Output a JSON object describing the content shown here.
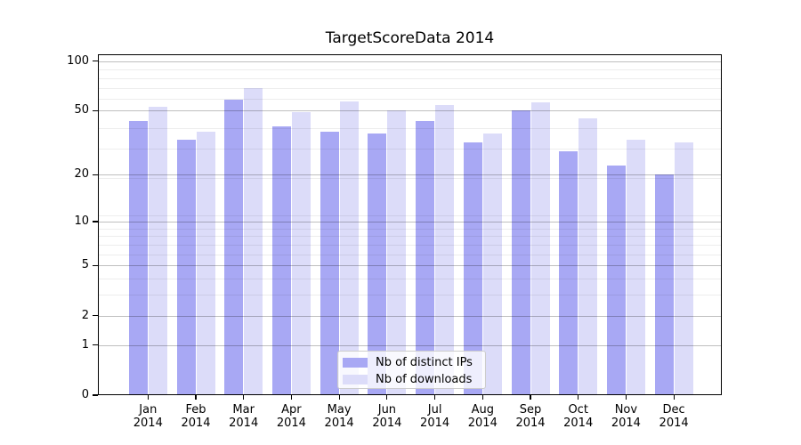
{
  "colors": {
    "ips_bar": "#a8a8f4",
    "downloads_bar": "#dcdcf9",
    "grid_major": "rgba(0,0,0,0.25)",
    "grid_minor": "rgba(0,0,0,0.07)",
    "spine": "#000000",
    "legend_bg": "rgba(255,255,255,0.8)",
    "legend_border": "#cccccc",
    "text": "#000000",
    "background": "#ffffff"
  },
  "y_axis": {
    "scale": "log1p",
    "tick_values": [
      0,
      1,
      2,
      5,
      10,
      20,
      50,
      100
    ],
    "tick_labels": [
      "0",
      "1",
      "2",
      "5",
      "10",
      "20",
      "50",
      "100"
    ],
    "minor_values": [
      3,
      4,
      6,
      7,
      8,
      9,
      11,
      19,
      29,
      39,
      59,
      69,
      79,
      89
    ],
    "max": 110
  },
  "chart_data": {
    "type": "bar",
    "title": "TargetScoreData 2014",
    "categories": [
      "Jan 2014",
      "Feb 2014",
      "Mar 2014",
      "Apr 2014",
      "May 2014",
      "Jun 2014",
      "Jul 2014",
      "Aug 2014",
      "Sep 2014",
      "Oct 2014",
      "Nov 2014",
      "Dec 2014"
    ],
    "series": [
      {
        "name": "Nb of distinct IPs",
        "values": [
          43,
          33,
          58,
          40,
          37,
          36,
          43,
          32,
          50,
          28,
          23,
          20
        ]
      },
      {
        "name": "Nb of downloads",
        "values": [
          53,
          37,
          69,
          49,
          57,
          50,
          54,
          36,
          56,
          45,
          33,
          32
        ]
      }
    ],
    "xlabel": "",
    "ylabel": "",
    "yscale": "log1p",
    "ylim": [
      0,
      110
    ],
    "yticks": [
      0,
      1,
      2,
      5,
      10,
      20,
      50,
      100
    ],
    "grid": "horizontal major and minor lines, drawn over bars",
    "legend_position": "inside bottom-center"
  }
}
